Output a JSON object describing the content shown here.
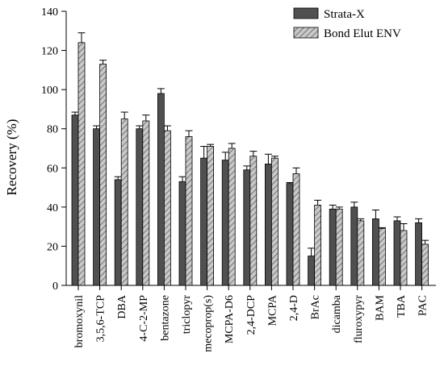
{
  "chart_data": {
    "type": "bar",
    "title": "",
    "xlabel": "",
    "ylabel": "Recovery (%)",
    "ylim": [
      0,
      140
    ],
    "yticks": [
      0,
      20,
      40,
      60,
      80,
      100,
      120,
      140
    ],
    "grid": false,
    "legend_position": "top-right",
    "categories": [
      "bromoxynil",
      "3,5,6-TCP",
      "DBA",
      "4-C-2-MP",
      "bentazone",
      "triclopyr",
      "mecoprop(s)",
      "MCPA-D6",
      "2,4-DCP",
      "MCPA",
      "2,4-D",
      "BrAc",
      "dicamba",
      "fluroxypyr",
      "BAM",
      "TBA",
      "PAC"
    ],
    "series": [
      {
        "name": "Strata-X",
        "color": "#505050",
        "pattern": "solid",
        "values": [
          87,
          80,
          54,
          80,
          98,
          53,
          65,
          64,
          59,
          62,
          52,
          15,
          39,
          40,
          34,
          33,
          32
        ],
        "errors": [
          1.5,
          1.5,
          1.5,
          1.5,
          2.5,
          2.5,
          6,
          4,
          2,
          5,
          0.5,
          4,
          2,
          2.5,
          4.5,
          2,
          2
        ]
      },
      {
        "name": "Bond Elut ENV",
        "color": "#c8c8c8",
        "pattern": "hatched",
        "values": [
          124,
          113,
          85,
          84,
          79,
          76,
          71,
          70,
          66,
          65,
          57,
          41,
          39,
          33,
          29,
          28,
          21
        ],
        "errors": [
          5,
          2,
          3.5,
          3,
          2.5,
          3,
          1,
          2.5,
          2.5,
          1,
          3,
          2.5,
          1,
          1,
          0.5,
          3.5,
          2
        ]
      }
    ]
  }
}
